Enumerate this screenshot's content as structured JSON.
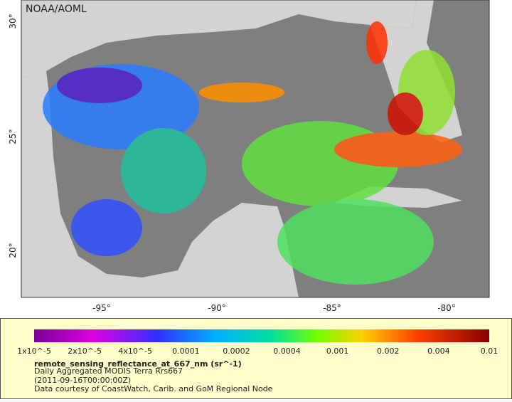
{
  "map": {
    "credit": "NOAA/AOML",
    "lat_labels": [
      "30°",
      "25°",
      "20°"
    ],
    "lon_labels": [
      "-95°",
      "-90°",
      "-85°",
      "-80°"
    ]
  },
  "legend": {
    "colorbar_labels": [
      "1x10^-5",
      "2x10^-5",
      "4x10^-5",
      "0.0001",
      "0.0002",
      "0.0004",
      "0.001",
      "0.002",
      "0.004",
      "0.01"
    ],
    "title": "remote_sensing_reflectance_at_667_nm (sr^-1)",
    "lines": [
      "Daily Aggregated MODIS Terra Rrs667",
      "(2011-09-16T00:00:00Z)",
      "Data courtesy of CoastWatch, Carib. and GoM Regional Node"
    ]
  }
}
